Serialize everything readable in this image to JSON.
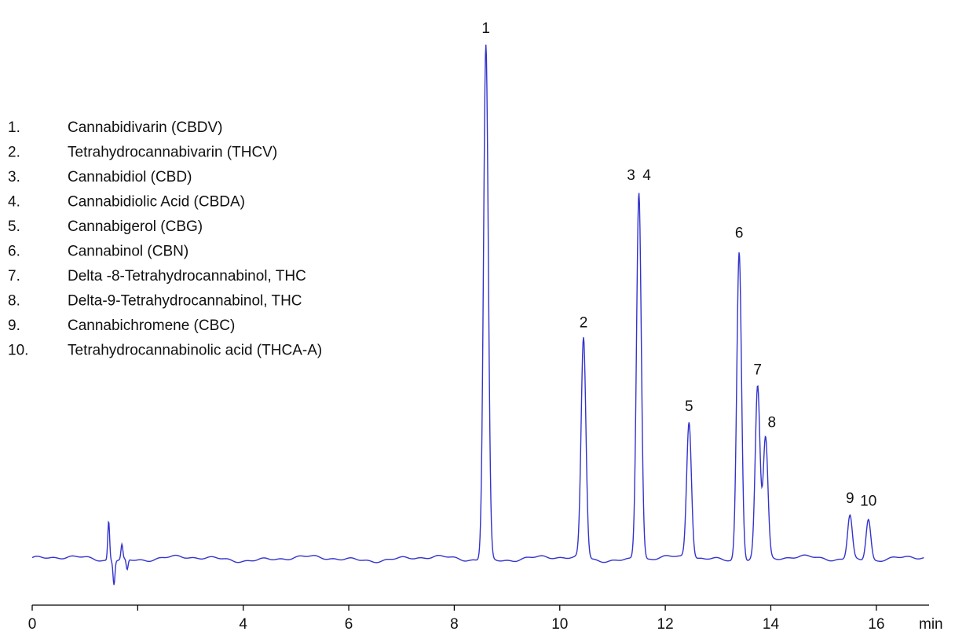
{
  "chart_data": {
    "type": "line",
    "title": "",
    "xlabel": "",
    "ylabel": "",
    "x_unit": "min",
    "xlim": [
      0,
      17
    ],
    "ylim": [
      0,
      100
    ],
    "x_ticks": [
      0,
      2,
      4,
      6,
      8,
      10,
      12,
      14,
      16
    ],
    "x_tick_labels": [
      "0",
      "",
      "4",
      "6",
      "8",
      "10",
      "12",
      "14",
      "16"
    ],
    "grid": false,
    "line_color": "#3333cc",
    "baseline": 2,
    "disturbances": [
      {
        "x": 1.45,
        "y": 9.5
      },
      {
        "x": 1.55,
        "y": -2.5
      },
      {
        "x": 1.7,
        "y": 4.8
      },
      {
        "x": 1.8,
        "y": 0
      }
    ],
    "peaks": [
      {
        "label": "1",
        "rt": 8.6,
        "height": 100
      },
      {
        "label": "2",
        "rt": 10.45,
        "height": 44
      },
      {
        "label": "3",
        "rt": 11.5,
        "height": 72
      },
      {
        "label": "4",
        "rt": 11.5,
        "height": 72
      },
      {
        "label": "5",
        "rt": 12.45,
        "height": 28
      },
      {
        "label": "6",
        "rt": 13.4,
        "height": 61
      },
      {
        "label": "7",
        "rt": 13.75,
        "height": 35
      },
      {
        "label": "8",
        "rt": 13.9,
        "height": 25
      },
      {
        "label": "9",
        "rt": 15.5,
        "height": 10.5
      },
      {
        "label": "10",
        "rt": 15.85,
        "height": 10
      }
    ],
    "legend": [
      {
        "num": "1.",
        "name": "Cannabidivarin (CBDV)"
      },
      {
        "num": "2.",
        "name": "Tetrahydrocannabivarin (THCV)"
      },
      {
        "num": "3.",
        "name": "Cannabidiol (CBD)"
      },
      {
        "num": "4.",
        "name": "Cannabidiolic Acid (CBDA)"
      },
      {
        "num": "5.",
        "name": "Cannabigerol (CBG)"
      },
      {
        "num": "6.",
        "name": "Cannabinol (CBN)"
      },
      {
        "num": "7.",
        "name": "Delta -8-Tetrahydrocannabinol, THC"
      },
      {
        "num": "8.",
        "name": "Delta-9-Tetrahydrocannabinol, THC"
      },
      {
        "num": "9.",
        "name": "Cannabichromene (CBC)"
      },
      {
        "num": "10.",
        "name": "Tetrahydrocannabinolic acid (THCA-A)"
      }
    ],
    "legend_position": "top-left"
  }
}
